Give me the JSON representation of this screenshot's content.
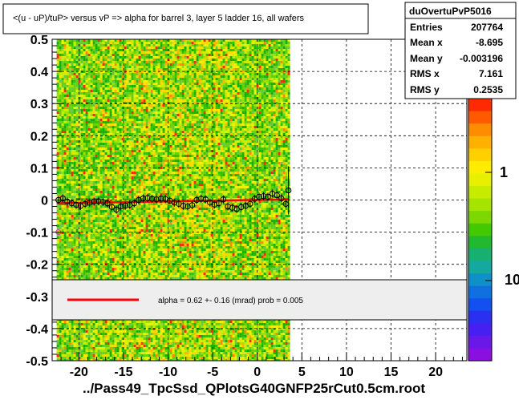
{
  "chart_data": {
    "type": "heatmap",
    "title": "<(u - uP)/tuP> versus   vP => alpha for barrel 3, layer 5 ladder 16, all wafers",
    "xlabel": "../Pass49_TpcSsd_QPlotsG40GNFP25rCut0.5cm.root",
    "ylabel": "",
    "xlim": [
      -23,
      23.5
    ],
    "ylim": [
      -0.5,
      0.5
    ],
    "x_ticks": [
      "-20",
      "-15",
      "-10",
      "-5",
      "0",
      "5",
      "10",
      "15",
      "20"
    ],
    "y_ticks": [
      "-0.5",
      "-0.4",
      "-0.3",
      "-0.2",
      "-0.1",
      "0",
      "0.1",
      "0.2",
      "0.3",
      "0.4",
      "0.5"
    ],
    "z_ticks": [
      "1",
      "10"
    ],
    "grid": true,
    "populated_x_range": [
      -22.5,
      3.5
    ],
    "profile_points": [
      [
        -22.3,
        0.0
      ],
      [
        -21.8,
        0.005
      ],
      [
        -21.3,
        -0.005
      ],
      [
        -20.8,
        -0.01
      ],
      [
        -20.3,
        -0.015
      ],
      [
        -19.8,
        -0.018
      ],
      [
        -19.3,
        -0.012
      ],
      [
        -18.8,
        -0.008
      ],
      [
        -18.3,
        -0.005
      ],
      [
        -17.8,
        -0.004
      ],
      [
        -17.3,
        -0.006
      ],
      [
        -16.8,
        -0.01
      ],
      [
        -16.3,
        -0.022
      ],
      [
        -15.8,
        -0.03
      ],
      [
        -15.3,
        -0.02
      ],
      [
        -14.8,
        -0.018
      ],
      [
        -14.3,
        -0.015
      ],
      [
        -13.8,
        -0.01
      ],
      [
        -13.3,
        0.0
      ],
      [
        -12.8,
        0.005
      ],
      [
        -12.3,
        0.006
      ],
      [
        -11.8,
        0.004
      ],
      [
        -11.3,
        0.002
      ],
      [
        -10.8,
        0.004
      ],
      [
        -10.3,
        0.003
      ],
      [
        -9.8,
        -0.002
      ],
      [
        -9.3,
        -0.008
      ],
      [
        -8.8,
        -0.012
      ],
      [
        -8.3,
        -0.018
      ],
      [
        -7.8,
        -0.02
      ],
      [
        -7.3,
        -0.016
      ],
      [
        -6.8,
        0.0
      ],
      [
        -6.3,
        0.004
      ],
      [
        -5.8,
        0.002
      ],
      [
        -5.3,
        -0.008
      ],
      [
        -4.8,
        -0.014
      ],
      [
        -4.3,
        -0.01
      ],
      [
        -3.8,
        0.002
      ],
      [
        -3.3,
        -0.02
      ],
      [
        -2.8,
        -0.024
      ],
      [
        -2.3,
        -0.028
      ],
      [
        -1.8,
        -0.022
      ],
      [
        -1.3,
        -0.018
      ],
      [
        -0.8,
        -0.012
      ],
      [
        -0.3,
        0.004
      ],
      [
        0.2,
        0.01
      ],
      [
        0.7,
        0.012
      ],
      [
        1.2,
        0.01
      ],
      [
        1.7,
        0.02
      ],
      [
        2.2,
        0.015
      ],
      [
        2.7,
        0.005
      ],
      [
        3.2,
        -0.012
      ],
      [
        3.5,
        0.03
      ]
    ],
    "fit_line": {
      "x": [
        -22.5,
        3.5
      ],
      "y": [
        -0.01,
        0.002
      ],
      "color": "#ff0000"
    },
    "legend": {
      "placement": "bottom-center",
      "entry": "alpha =     0.62 +-  0.16 (mrad) prob = 0.005"
    },
    "stats": {
      "name": "duOvertuPvP5016",
      "rows": [
        {
          "label": "Entries",
          "value": "207764"
        },
        {
          "label": "Mean x",
          "value": "-8.695"
        },
        {
          "label": "Mean y",
          "value": "-0.003196"
        },
        {
          "label": "RMS x",
          "value": "7.161"
        },
        {
          "label": "RMS y",
          "value": "0.2535"
        }
      ]
    },
    "colors": {
      "frame": "#000000",
      "fit": "#ff0000",
      "grid": "#000000"
    }
  }
}
